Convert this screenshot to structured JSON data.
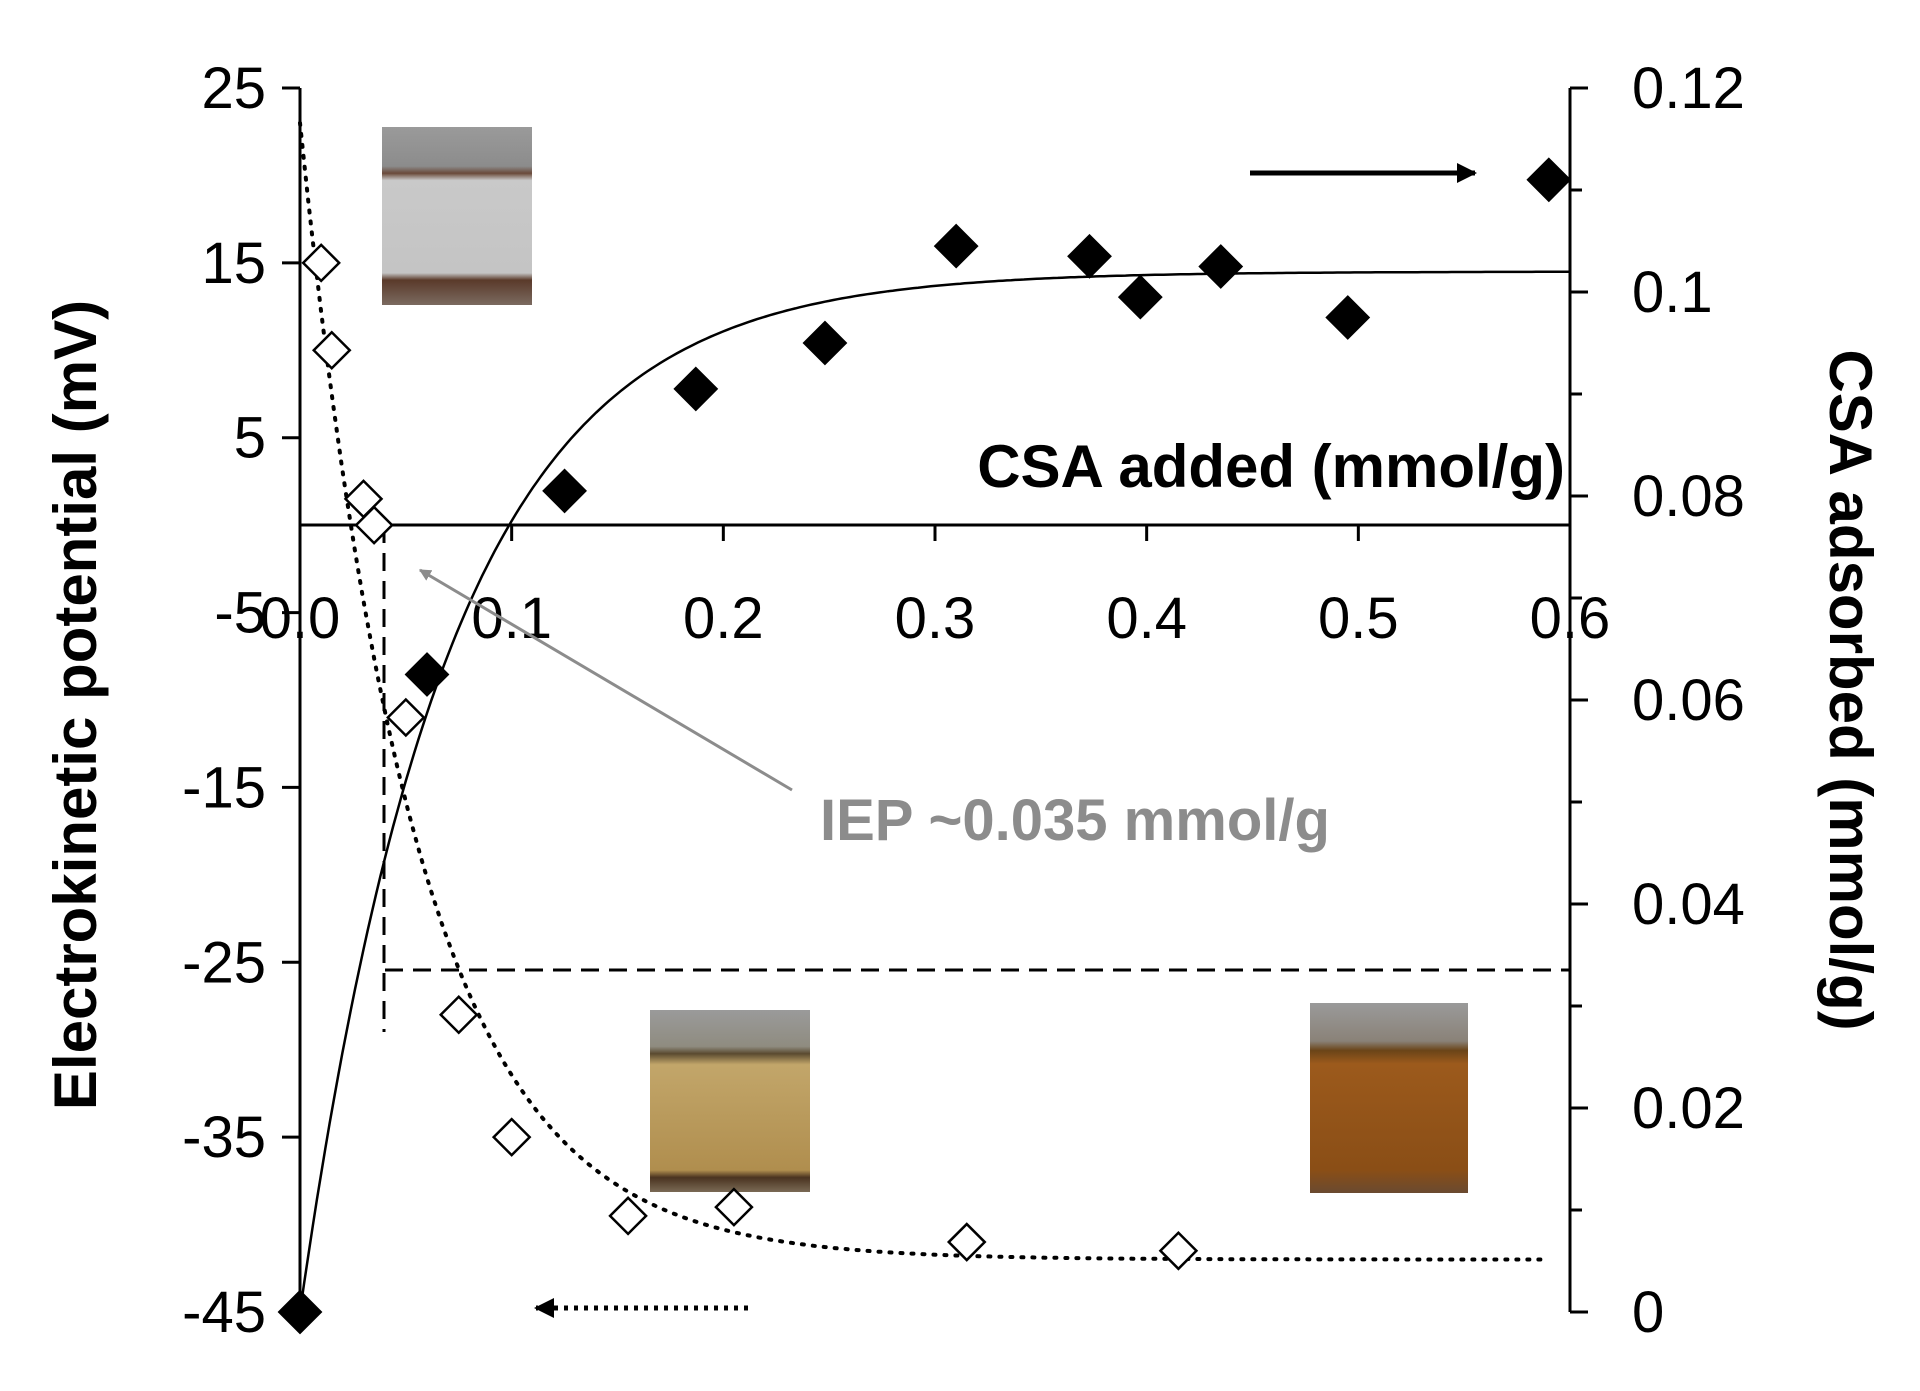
{
  "chart_data": {
    "type": "scatter",
    "x": {
      "label": "CSA added (mmol/g)",
      "lim": [
        0,
        0.6
      ],
      "ticks": [
        0.0,
        0.1,
        0.2,
        0.3,
        0.4,
        0.5,
        0.6
      ],
      "tick_labels": [
        "0.0",
        "0.1",
        "0.2",
        "0.3",
        "0.4",
        "0.5",
        "0.6"
      ]
    },
    "y_left": {
      "label": "Electrokinetic potential (mV)",
      "lim": [
        -45,
        25
      ],
      "ticks": [
        25,
        15,
        5,
        -5,
        -15,
        -25,
        -35,
        -45
      ],
      "tick_labels": [
        "25",
        "15",
        "5",
        "-5",
        "-15",
        "-25",
        "-35",
        "-45"
      ]
    },
    "y_right": {
      "label": "CSA adsorbed (mmol/g)",
      "lim": [
        0,
        0.12
      ],
      "ticks": [
        0.12,
        0.1,
        0.08,
        0.06,
        0.04,
        0.02,
        0
      ],
      "tick_labels": [
        "0.12",
        "0.1",
        "0.08",
        "0.06",
        "0.04",
        "0.02",
        "0"
      ]
    },
    "series": [
      {
        "axis": "left",
        "marker": "open-diamond",
        "x": [
          0.01,
          0.015,
          0.03,
          0.035,
          0.05,
          0.075,
          0.1,
          0.155,
          0.205,
          0.315,
          0.415
        ],
        "y": [
          15,
          10,
          1.5,
          0,
          -11,
          -28,
          -35,
          -39.5,
          -39,
          -41,
          -41.5
        ]
      },
      {
        "axis": "right",
        "marker": "filled-diamond",
        "x": [
          0.0,
          0.06,
          0.125,
          0.187,
          0.248,
          0.31,
          0.373,
          0.397,
          0.435,
          0.495,
          0.59
        ],
        "y": [
          0.0,
          0.0625,
          0.0805,
          0.0905,
          0.095,
          0.1045,
          0.1035,
          0.0995,
          0.1025,
          0.0975,
          0.111
        ]
      }
    ],
    "fit_curves": [
      {
        "axis": "right",
        "style": "solid",
        "form": "0.102*(1-exp(-x/0.07))"
      },
      {
        "axis": "left",
        "style": "dotted",
        "form": "-42+65*exp(-x/0.055)"
      }
    ],
    "annotations": [
      {
        "text": "IEP ~0.035 mmol/g",
        "color": "#8c8c8c",
        "points_to_x": 0.035
      }
    ],
    "grid": false,
    "legend": "none",
    "colors": {
      "axis": "#000000",
      "annotation": "#8c8c8c"
    }
  }
}
